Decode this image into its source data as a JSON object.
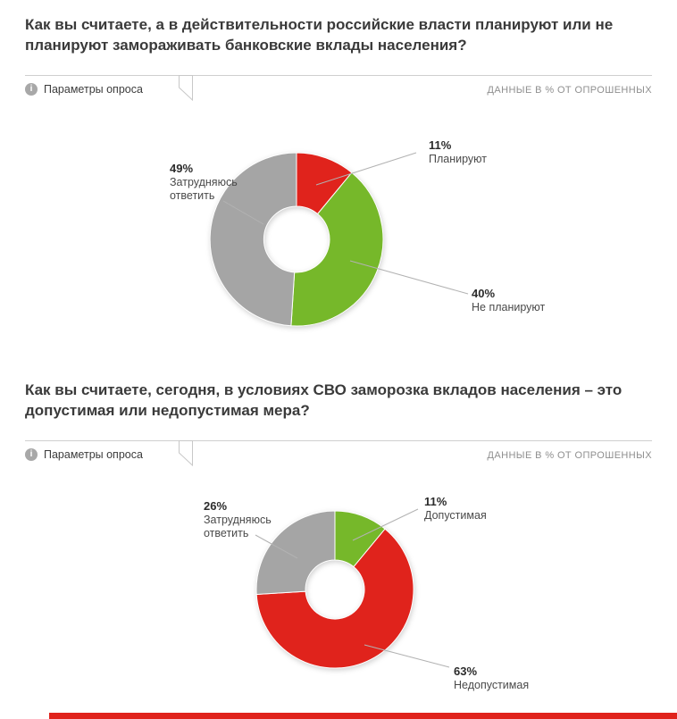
{
  "page": {
    "accent_red": "#e0231c",
    "accent_green": "#76b82a",
    "accent_gray": "#a5a5a5"
  },
  "sections": [
    {
      "title": "Как вы считаете, а в действительности российские власти планируют или не планируют замораживать банковские вклады населения?",
      "params_label": "Параметры опроса",
      "data_note": "ДАННЫЕ В % ОТ ОПРОШЕННЫХ"
    },
    {
      "title": "Как вы считаете, сегодня, в условиях СВО заморозка вкладов населения – это допустимая или недопустимая мера?",
      "params_label": "Параметры опроса",
      "data_note": "ДАННЫЕ В % ОТ ОПРОШЕННЫХ"
    }
  ],
  "chart_data": [
    {
      "type": "pie",
      "donut": true,
      "title": "Как вы считаете, а в действительности российские власти планируют или не планируют замораживать банковские вклады населения?",
      "units": "ДАННЫЕ В % ОТ ОПРОШЕННЫХ",
      "labels": [
        "Планируют",
        "Не планируют",
        "Затрудняюсь ответить"
      ],
      "values": [
        11,
        40,
        49
      ],
      "pct_labels": [
        "11%",
        "40%",
        "49%"
      ],
      "colors": [
        "#e0231c",
        "#76b82a",
        "#a5a5a5"
      ],
      "legend_position": "callout-labels"
    },
    {
      "type": "pie",
      "donut": true,
      "title": "Как вы считаете, сегодня, в условиях СВО заморозка вкладов населения – это допустимая или недопустимая мера?",
      "units": "ДАННЫЕ В % ОТ ОПРОШЕННЫХ",
      "labels": [
        "Допустимая",
        "Недопустимая",
        "Затрудняюсь ответить"
      ],
      "values": [
        11,
        63,
        26
      ],
      "pct_labels": [
        "11%",
        "63%",
        "26%"
      ],
      "colors": [
        "#76b82a",
        "#e0231c",
        "#a5a5a5"
      ],
      "legend_position": "callout-labels"
    }
  ]
}
